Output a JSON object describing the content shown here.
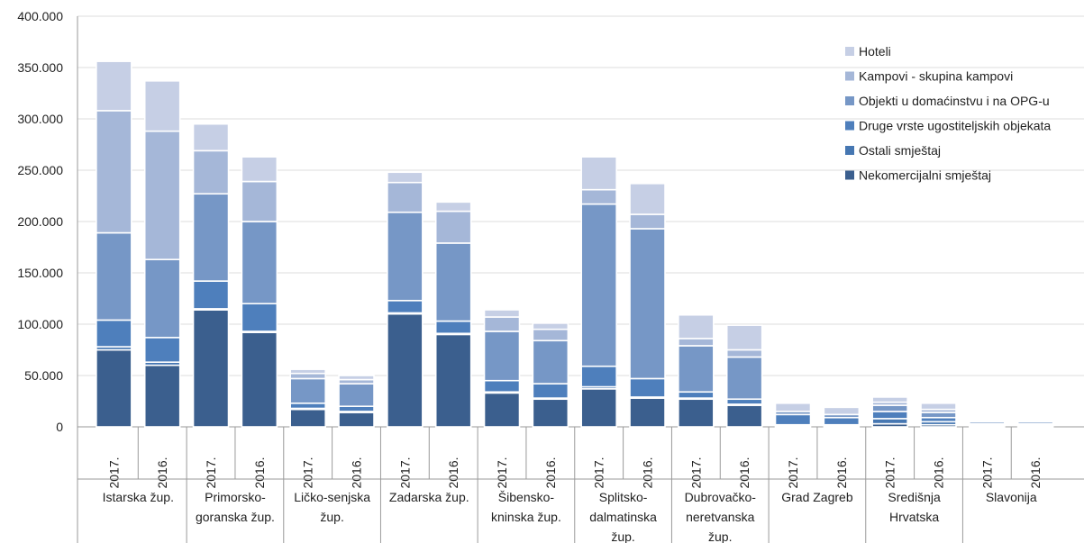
{
  "chart_data": {
    "type": "bar",
    "stacked": true,
    "ylim": [
      0,
      400000
    ],
    "yticks": [
      "0",
      "50.000",
      "100.000",
      "150.000",
      "200.000",
      "250.000",
      "300.000",
      "350.000",
      "400.000"
    ],
    "grid": true,
    "legend_position": "right",
    "groups": [
      {
        "label": "Istarska žup.",
        "lines": [
          "Istarska žup."
        ]
      },
      {
        "label": "Primorsko-goranska žup.",
        "lines": [
          "Primorsko-",
          "goranska žup."
        ]
      },
      {
        "label": "Ličko-senjska žup.",
        "lines": [
          "Ličko-senjska",
          "žup."
        ]
      },
      {
        "label": "Zadarska žup.",
        "lines": [
          "Zadarska žup."
        ]
      },
      {
        "label": "Šibensko-kninska žup.",
        "lines": [
          "Šibensko-",
          "kninska žup."
        ]
      },
      {
        "label": "Splitsko-dalmatinska žup.",
        "lines": [
          "Splitsko-",
          "dalmatinska",
          "žup."
        ]
      },
      {
        "label": "Dubrovačko-neretvanska žup.",
        "lines": [
          "Dubrovačko-",
          "neretvanska",
          "žup."
        ]
      },
      {
        "label": "Grad Zagreb",
        "lines": [
          "Grad Zagreb"
        ]
      },
      {
        "label": "Središnja Hrvatska",
        "lines": [
          "Središnja",
          "Hrvatska"
        ]
      },
      {
        "label": "Slavonija",
        "lines": [
          "Slavonija"
        ]
      }
    ],
    "categories": [
      "2017.",
      "2016.",
      "2017.",
      "2016.",
      "2017.",
      "2016.",
      "2017.",
      "2016.",
      "2017.",
      "2016.",
      "2017.",
      "2016.",
      "2017.",
      "2016.",
      "2017.",
      "2016.",
      "2017.",
      "2016.",
      "2017.",
      "2016."
    ],
    "series": [
      {
        "name": "Nekomercijalni smještaj",
        "color": "#3b5f8e",
        "values": [
          75000,
          60000,
          114000,
          92000,
          17000,
          14000,
          110000,
          90000,
          33000,
          27000,
          37000,
          28000,
          27000,
          21000,
          1000,
          1000,
          3000,
          2000,
          1000,
          1000
        ]
      },
      {
        "name": "Ostali smještaj",
        "color": "#4677b2",
        "values": [
          3000,
          3000,
          1000,
          1000,
          1000,
          1000,
          1000,
          1000,
          1000,
          1000,
          2000,
          1000,
          1000,
          1000,
          1000,
          1000,
          5000,
          3000,
          1000,
          1000
        ]
      },
      {
        "name": "Druge vrste ugostiteljskih objekata",
        "color": "#4e7fbc",
        "values": [
          26000,
          24000,
          27000,
          27000,
          5000,
          5000,
          12000,
          12000,
          11000,
          14000,
          20000,
          18000,
          6000,
          5000,
          10000,
          7000,
          7000,
          4000,
          1000,
          1000
        ]
      },
      {
        "name": "Objekti u domaćinstvu i na OPG-u",
        "color": "#7697c6",
        "values": [
          85000,
          76000,
          85000,
          80000,
          24000,
          22000,
          86000,
          76000,
          48000,
          42000,
          158000,
          146000,
          45000,
          41000,
          3000,
          3000,
          6000,
          5000,
          2000,
          2000
        ]
      },
      {
        "name": "Kampovi - skupina kampovi",
        "color": "#a5b7d8",
        "values": [
          119000,
          125000,
          42000,
          39000,
          5000,
          4000,
          29000,
          31000,
          14000,
          11000,
          14000,
          14000,
          7000,
          7000,
          0,
          0,
          3000,
          3000,
          0,
          0
        ]
      },
      {
        "name": "Hoteli",
        "color": "#c6cfe5",
        "values": [
          48000,
          49000,
          26000,
          24000,
          4000,
          4000,
          10000,
          9000,
          7000,
          6000,
          32000,
          30000,
          23000,
          24000,
          8000,
          7000,
          5000,
          6000,
          1000,
          1000
        ]
      }
    ]
  }
}
